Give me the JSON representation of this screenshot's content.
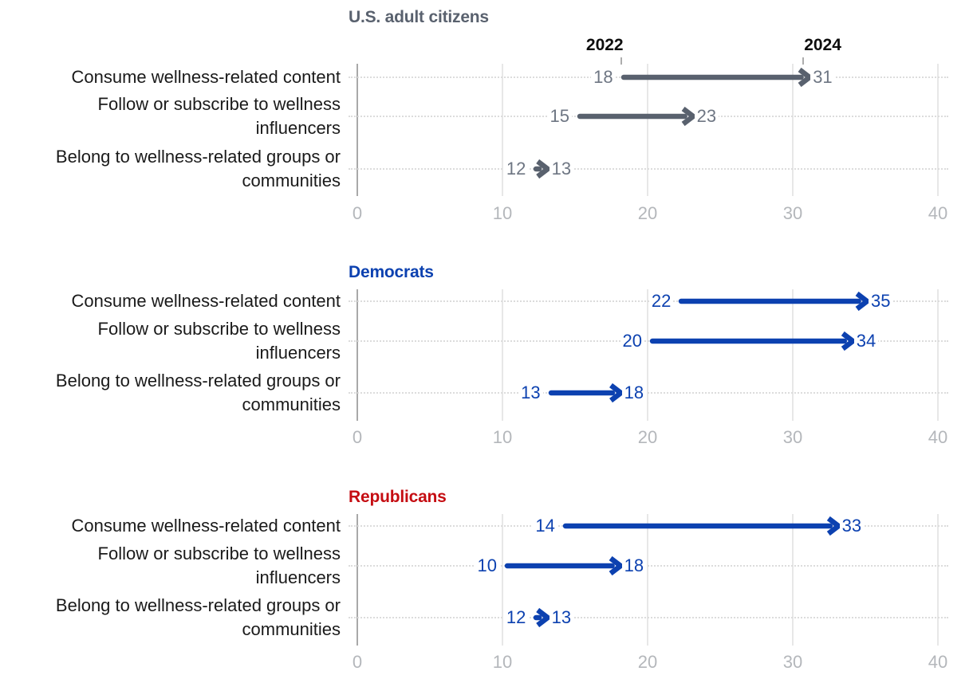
{
  "colors": {
    "gray_arrow": "#59616e",
    "gray_value_label": "#6e7683",
    "blue": "#0c41b0",
    "red": "#c50d12",
    "category_text": "#1a1a1a",
    "axis_tick_label": "#b4b7bb",
    "gridline": "#e7e7e7",
    "zero_axis_line": "#a9a9a9",
    "row_dotted_line": "#dcdcdc",
    "year_label_text": "#0d0d0d",
    "year_tick": "#adadad",
    "background": "#ffffff"
  },
  "chart_data": [
    {
      "type": "arrow",
      "title": "U.S. adult citizens",
      "title_color": "#59616e",
      "arrow_color": "#59616e",
      "value_label_color": "#6e7683",
      "show_year_labels": true,
      "year_labels": [
        "2022",
        "2024"
      ],
      "categories": [
        "Consume wellness-related content",
        "Follow or subscribe to wellness influencers",
        "Belong to wellness-related groups or communities"
      ],
      "series": [
        {
          "name": "2022",
          "values": [
            18,
            15,
            12
          ]
        },
        {
          "name": "2024",
          "values": [
            31,
            23,
            13
          ]
        }
      ],
      "xlim": [
        0,
        40
      ],
      "x_ticks": [
        0,
        10,
        20,
        30,
        40
      ],
      "grid": true,
      "legend_position": "top-inline"
    },
    {
      "type": "arrow",
      "title": "Democrats",
      "title_color": "#0c41b0",
      "arrow_color": "#0c41b0",
      "value_label_color": "#0c41b0",
      "show_year_labels": false,
      "categories": [
        "Consume wellness-related content",
        "Follow or subscribe to wellness influencers",
        "Belong to wellness-related groups or communities"
      ],
      "series": [
        {
          "name": "2022",
          "values": [
            22,
            20,
            13
          ]
        },
        {
          "name": "2024",
          "values": [
            35,
            34,
            18
          ]
        }
      ],
      "xlim": [
        0,
        40
      ],
      "x_ticks": [
        0,
        10,
        20,
        30,
        40
      ],
      "grid": true
    },
    {
      "type": "arrow",
      "title": "Republicans",
      "title_color": "#c50d12",
      "arrow_color": "#0c41b0",
      "value_label_color": "#0c41b0",
      "show_year_labels": false,
      "categories": [
        "Consume wellness-related content",
        "Follow or subscribe to wellness influencers",
        "Belong to wellness-related groups or communities"
      ],
      "series": [
        {
          "name": "2022",
          "values": [
            14,
            10,
            12
          ]
        },
        {
          "name": "2024",
          "values": [
            33,
            18,
            13
          ]
        }
      ],
      "xlim": [
        0,
        40
      ],
      "x_ticks": [
        0,
        10,
        20,
        30,
        40
      ],
      "grid": true
    }
  ]
}
